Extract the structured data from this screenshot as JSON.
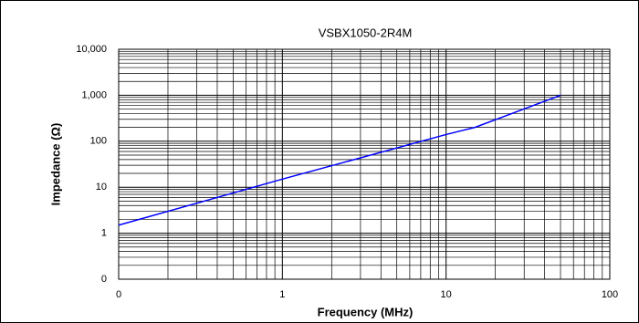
{
  "chart_data": {
    "type": "line",
    "title": "VSBX1050-2R4M",
    "x_label": "Frequency (MHz)",
    "y_label": "Impedance (Ω)",
    "x": [
      0.1,
      1,
      10,
      15,
      50
    ],
    "values": [
      1.5,
      15,
      140,
      200,
      1000
    ],
    "color": "#0000ff",
    "xlim": [
      0.1,
      100
    ],
    "ylim": [
      0.1,
      10000
    ],
    "xticks": [
      {
        "value": 0.1,
        "label": "0"
      },
      1,
      10,
      100
    ],
    "yticks": [
      {
        "value": 0.1,
        "label": "0"
      },
      1,
      10,
      100,
      {
        "value": 1000,
        "label": "1,000"
      },
      {
        "value": 10000,
        "label": "10,000"
      }
    ],
    "xscale": "log",
    "yscale": "log",
    "grid": true,
    "minor_grid": true
  }
}
